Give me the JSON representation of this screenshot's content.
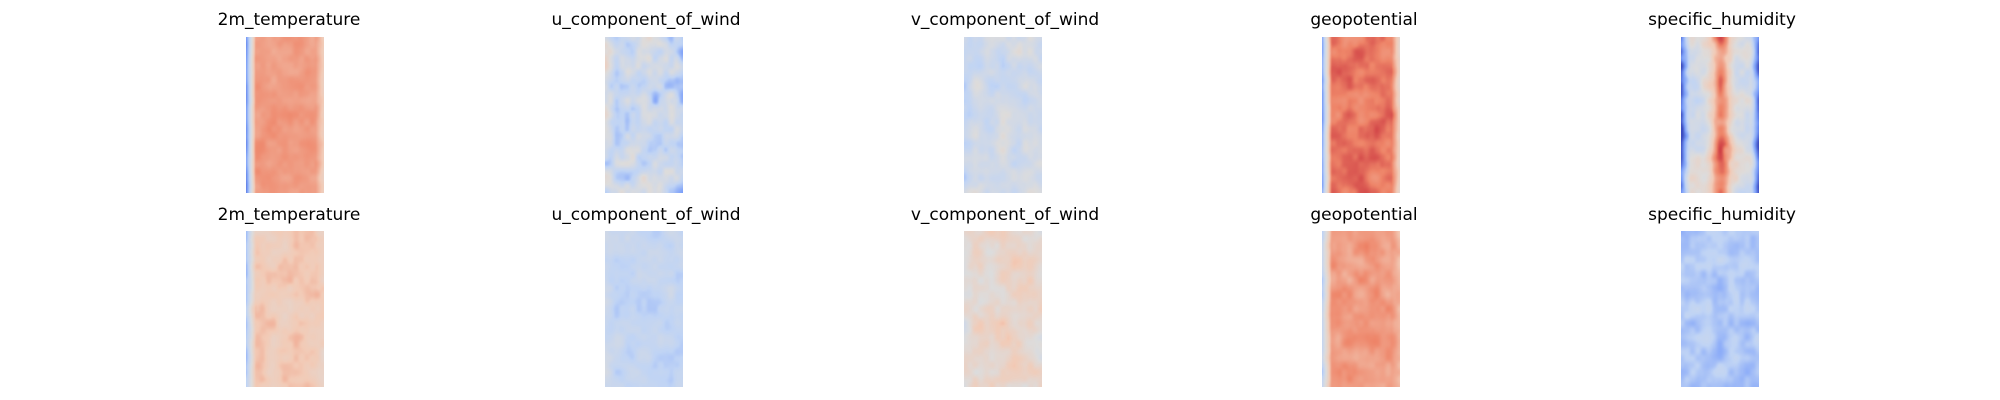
{
  "figure": {
    "colormap": "coolwarm",
    "colormap_stops": [
      "#3b4cc0",
      "#7b9ff9",
      "#c0d4f5",
      "#dddcdc",
      "#f2cbb7",
      "#ee8468",
      "#b40426"
    ]
  },
  "chart_data": [
    {
      "type": "heatmap",
      "title": "2m_temperature",
      "row": 0,
      "col": 0,
      "colormap": "coolwarm",
      "grid": false,
      "axes": "off",
      "value_range": [
        0,
        1
      ],
      "description_of_field": "mostly warm values, cold strip on left edge",
      "pattern": {
        "base": 0.78,
        "edge_left": 0.15,
        "edge_right": 0.65,
        "noise": 0.05
      }
    },
    {
      "type": "heatmap",
      "title": "u_component_of_wind",
      "row": 0,
      "col": 1,
      "colormap": "coolwarm",
      "grid": false,
      "axes": "off",
      "value_range": [
        0,
        1
      ],
      "pattern": {
        "base": 0.38,
        "edge_left": 0.45,
        "edge_right": 0.3,
        "noise": 0.2
      }
    },
    {
      "type": "heatmap",
      "title": "v_component_of_wind",
      "row": 0,
      "col": 2,
      "colormap": "coolwarm",
      "grid": false,
      "axes": "off",
      "value_range": [
        0,
        1
      ],
      "pattern": {
        "base": 0.42,
        "edge_left": 0.38,
        "edge_right": 0.4,
        "noise": 0.12
      }
    },
    {
      "type": "heatmap",
      "title": "geopotential",
      "row": 0,
      "col": 3,
      "colormap": "coolwarm",
      "grid": false,
      "axes": "off",
      "value_range": [
        0,
        1
      ],
      "pattern": {
        "base": 0.85,
        "edge_left": 0.18,
        "edge_right": 0.6,
        "noise": 0.07
      }
    },
    {
      "type": "heatmap",
      "title": "specific_humidity",
      "row": 0,
      "col": 4,
      "colormap": "coolwarm",
      "grid": false,
      "axes": "off",
      "value_range": [
        0,
        1
      ],
      "pattern": {
        "base": 0.45,
        "edge_left": 0.05,
        "edge_right": 0.1,
        "center_boost": 0.35,
        "noise": 0.15
      }
    },
    {
      "type": "heatmap",
      "title": "2m_temperature",
      "row": 1,
      "col": 0,
      "colormap": "coolwarm",
      "grid": false,
      "axes": "off",
      "value_range": [
        0,
        1
      ],
      "pattern": {
        "base": 0.66,
        "edge_left": 0.3,
        "edge_right": 0.62,
        "noise": 0.08
      }
    },
    {
      "type": "heatmap",
      "title": "u_component_of_wind",
      "row": 1,
      "col": 1,
      "colormap": "coolwarm",
      "grid": false,
      "axes": "off",
      "value_range": [
        0,
        1
      ],
      "pattern": {
        "base": 0.36,
        "edge_left": 0.4,
        "edge_right": 0.35,
        "noise": 0.08
      }
    },
    {
      "type": "heatmap",
      "title": "v_component_of_wind",
      "row": 1,
      "col": 2,
      "colormap": "coolwarm",
      "grid": false,
      "axes": "off",
      "value_range": [
        0,
        1
      ],
      "pattern": {
        "base": 0.58,
        "edge_left": 0.5,
        "edge_right": 0.55,
        "noise": 0.12
      }
    },
    {
      "type": "heatmap",
      "title": "geopotential",
      "row": 1,
      "col": 3,
      "colormap": "coolwarm",
      "grid": false,
      "axes": "off",
      "value_range": [
        0,
        1
      ],
      "pattern": {
        "base": 0.78,
        "edge_left": 0.35,
        "edge_right": 0.7,
        "noise": 0.07
      }
    },
    {
      "type": "heatmap",
      "title": "specific_humidity",
      "row": 1,
      "col": 4,
      "colormap": "coolwarm",
      "grid": false,
      "axes": "off",
      "value_range": [
        0,
        1
      ],
      "pattern": {
        "base": 0.3,
        "edge_left": 0.3,
        "edge_right": 0.32,
        "noise": 0.1
      }
    }
  ]
}
